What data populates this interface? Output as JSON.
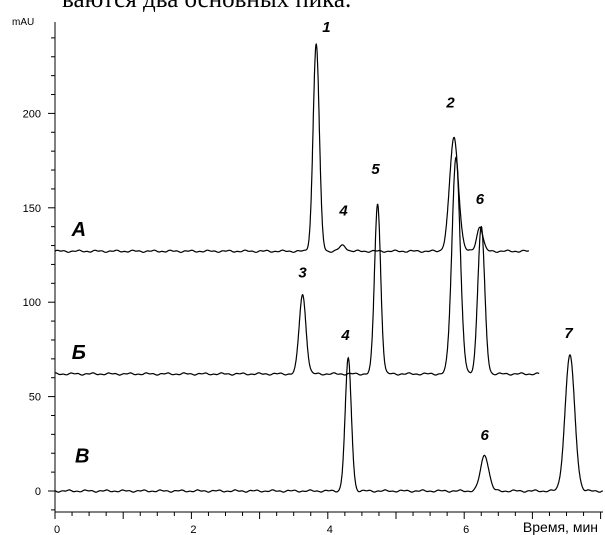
{
  "caption_fragment": "ваются два основных пика.",
  "chart_data": {
    "type": "line",
    "ylabel": "mAU",
    "xlabel": "Время, мин",
    "xlim": [
      0,
      7.0
    ],
    "ylim": [
      -15,
      255
    ],
    "xticks": [
      0,
      2,
      4,
      6
    ],
    "yticks": [
      0,
      50,
      100,
      150,
      200
    ],
    "series": [
      {
        "name": "А",
        "baseline": 127,
        "x_range": [
          0,
          6.95
        ],
        "peaks": [
          {
            "label": "1",
            "x": 3.83,
            "height": 110,
            "width": 0.045
          },
          {
            "label": "4",
            "x": 4.22,
            "height": 3,
            "width": 0.05
          },
          {
            "label": "2",
            "x": 5.85,
            "height": 60,
            "width": 0.065
          },
          {
            "label": "6",
            "x": 6.23,
            "height": 13,
            "width": 0.045
          }
        ]
      },
      {
        "name": "Б",
        "baseline": 62,
        "x_range": [
          0,
          7.1
        ],
        "peaks": [
          {
            "label": "3",
            "x": 3.63,
            "height": 42,
            "width": 0.05
          },
          {
            "label": "5",
            "x": 4.73,
            "height": 90,
            "width": 0.045
          },
          {
            "label": "2",
            "x": 5.88,
            "height": 115,
            "width": 0.06
          },
          {
            "label": "6",
            "x": 6.25,
            "height": 78,
            "width": 0.05
          }
        ]
      },
      {
        "name": "В",
        "baseline": 0,
        "x_range": [
          0,
          8.4
        ],
        "peaks": [
          {
            "label": "4",
            "x": 4.3,
            "height": 70,
            "width": 0.045
          },
          {
            "label": "5",
            "x": 4.72,
            "height": 0,
            "width": 0.04
          },
          {
            "label": "6",
            "x": 6.3,
            "height": 19,
            "width": 0.06
          },
          {
            "label": "7",
            "x": 7.55,
            "height": 72,
            "width": 0.07
          }
        ]
      }
    ]
  },
  "peak_labels": [
    {
      "text": "1",
      "x": 3.98,
      "y": 243
    },
    {
      "text": "4",
      "x": 4.23,
      "y": 146
    },
    {
      "text": "5",
      "x": 4.7,
      "y": 168
    },
    {
      "text": "2",
      "x": 5.8,
      "y": 203
    },
    {
      "text": "6",
      "x": 6.23,
      "y": 152
    },
    {
      "text": "3",
      "x": 3.63,
      "y": 113
    },
    {
      "text": "4",
      "x": 4.26,
      "y": 80
    },
    {
      "text": "6",
      "x": 6.3,
      "y": 27
    },
    {
      "text": "7",
      "x": 7.53,
      "y": 81
    }
  ],
  "trace_labels": [
    {
      "text": "А",
      "x": 0.35,
      "y": 135
    },
    {
      "text": "Б",
      "x": 0.35,
      "y": 70
    },
    {
      "text": "В",
      "x": 0.4,
      "y": 15
    }
  ]
}
